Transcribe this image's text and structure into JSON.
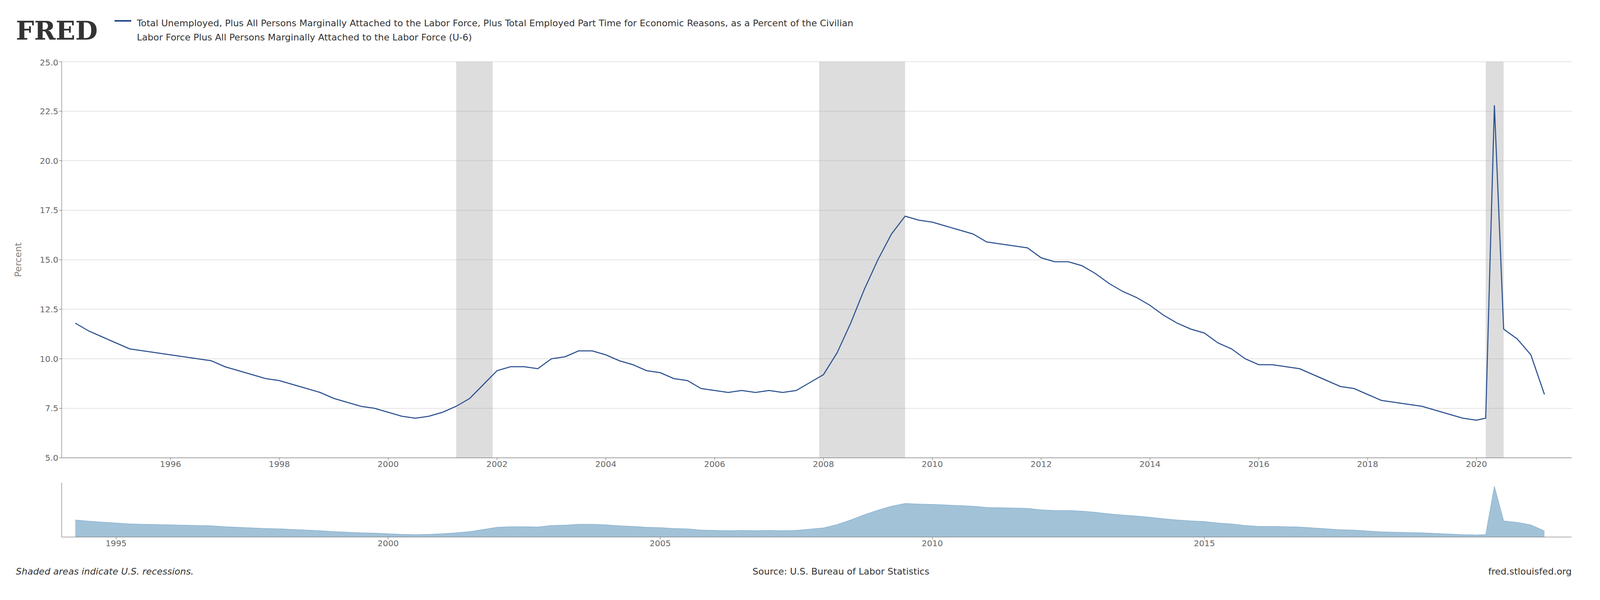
{
  "chart_data": [
    {
      "type": "line",
      "title": "Total Unemployed, Plus All Persons Marginally Attached to the Labor Force, Plus Total Employed Part Time for Economic Reasons, as a Percent of the Civilian",
      "subtitle": "Labor Force Plus All Persons Marginally Attached to the Labor Force (U-6)",
      "ylabel": "Percent",
      "annotations": [
        "FRED",
        "Shaded areas indicate U.S. recessions.",
        "Source: U.S. Bureau of Labor Statistics",
        "fred.stlouisfed.org"
      ],
      "color": "#2a4f8f",
      "xlim": [
        1994.0,
        2021.75
      ],
      "xticks": [
        1996,
        1998,
        2000,
        2002,
        2004,
        2006,
        2008,
        2010,
        2012,
        2014,
        2016,
        2018,
        2020
      ],
      "ylim": [
        5.0,
        25.0
      ],
      "yticks": [
        {
          "value": 5,
          "label": "5.0"
        },
        7.5,
        {
          "value": 10,
          "label": "10.0"
        },
        12.5,
        {
          "value": 15,
          "label": "15.0"
        },
        17.5,
        {
          "value": 20,
          "label": "20.0"
        },
        22.5,
        {
          "value": 25,
          "label": "25.0"
        }
      ],
      "grid": true,
      "recessions": [
        [
          2001.25,
          2001.92
        ],
        [
          2007.92,
          2009.5
        ],
        [
          2020.17,
          2020.5
        ]
      ],
      "x": [
        1994.25,
        1994.5,
        1994.75,
        1995.0,
        1995.25,
        1995.5,
        1995.75,
        1996.0,
        1996.25,
        1996.5,
        1996.75,
        1997.0,
        1997.25,
        1997.5,
        1997.75,
        1998.0,
        1998.25,
        1998.5,
        1998.75,
        1999.0,
        1999.25,
        1999.5,
        1999.75,
        2000.0,
        2000.25,
        2000.5,
        2000.75,
        2001.0,
        2001.25,
        2001.5,
        2001.75,
        2002.0,
        2002.25,
        2002.5,
        2002.75,
        2003.0,
        2003.25,
        2003.5,
        2003.75,
        2004.0,
        2004.25,
        2004.5,
        2004.75,
        2005.0,
        2005.25,
        2005.5,
        2005.75,
        2006.0,
        2006.25,
        2006.5,
        2006.75,
        2007.0,
        2007.25,
        2007.5,
        2007.75,
        2008.0,
        2008.25,
        2008.5,
        2008.75,
        2009.0,
        2009.25,
        2009.5,
        2009.75,
        2010.0,
        2010.25,
        2010.5,
        2010.75,
        2011.0,
        2011.25,
        2011.5,
        2011.75,
        2012.0,
        2012.25,
        2012.5,
        2012.75,
        2013.0,
        2013.25,
        2013.5,
        2013.75,
        2014.0,
        2014.25,
        2014.5,
        2014.75,
        2015.0,
        2015.25,
        2015.5,
        2015.75,
        2016.0,
        2016.25,
        2016.5,
        2016.75,
        2017.0,
        2017.25,
        2017.5,
        2017.75,
        2018.0,
        2018.25,
        2018.5,
        2018.75,
        2019.0,
        2019.25,
        2019.5,
        2019.75,
        2020.0,
        2020.17,
        2020.33,
        2020.5,
        2020.75,
        2021.0,
        2021.25
      ],
      "values": [
        11.8,
        11.4,
        11.1,
        10.8,
        10.5,
        10.4,
        10.3,
        10.2,
        10.1,
        10.0,
        9.9,
        9.6,
        9.4,
        9.2,
        9.0,
        8.9,
        8.7,
        8.5,
        8.3,
        8.0,
        7.8,
        7.6,
        7.5,
        7.3,
        7.1,
        7.0,
        7.1,
        7.3,
        7.6,
        8.0,
        8.7,
        9.4,
        9.6,
        9.6,
        9.5,
        10.0,
        10.1,
        10.4,
        10.4,
        10.2,
        9.9,
        9.7,
        9.4,
        9.3,
        9.0,
        8.9,
        8.5,
        8.4,
        8.3,
        8.4,
        8.3,
        8.4,
        8.3,
        8.4,
        8.8,
        9.2,
        10.3,
        11.8,
        13.5,
        15.0,
        16.3,
        17.2,
        17.0,
        16.9,
        16.7,
        16.5,
        16.3,
        15.9,
        15.8,
        15.7,
        15.6,
        15.1,
        14.9,
        14.9,
        14.7,
        14.3,
        13.8,
        13.4,
        13.1,
        12.7,
        12.2,
        11.8,
        11.5,
        11.3,
        10.8,
        10.5,
        10.0,
        9.7,
        9.7,
        9.6,
        9.5,
        9.2,
        8.9,
        8.6,
        8.5,
        8.2,
        7.9,
        7.8,
        7.7,
        7.6,
        7.4,
        7.2,
        7.0,
        6.9,
        7.0,
        22.8,
        11.5,
        11.0,
        10.2,
        8.2
      ]
    },
    {
      "type": "area",
      "color": "#7aa8c8",
      "xlim": [
        1994.0,
        2021.75
      ],
      "xticks": [
        1995,
        2000,
        2005,
        2010,
        2015
      ],
      "ylim": [
        6.21,
        23.94
      ],
      "tick_labels": "x",
      "grid": false,
      "x": [
        1994.25,
        1994.5,
        1994.75,
        1995.0,
        1995.25,
        1995.5,
        1995.75,
        1996.0,
        1996.25,
        1996.5,
        1996.75,
        1997.0,
        1997.25,
        1997.5,
        1997.75,
        1998.0,
        1998.25,
        1998.5,
        1998.75,
        1999.0,
        1999.25,
        1999.5,
        1999.75,
        2000.0,
        2000.25,
        2000.5,
        2000.75,
        2001.0,
        2001.25,
        2001.5,
        2001.75,
        2002.0,
        2002.25,
        2002.5,
        2002.75,
        2003.0,
        2003.25,
        2003.5,
        2003.75,
        2004.0,
        2004.25,
        2004.5,
        2004.75,
        2005.0,
        2005.25,
        2005.5,
        2005.75,
        2006.0,
        2006.25,
        2006.5,
        2006.75,
        2007.0,
        2007.25,
        2007.5,
        2007.75,
        2008.0,
        2008.25,
        2008.5,
        2008.75,
        2009.0,
        2009.25,
        2009.5,
        2009.75,
        2010.0,
        2010.25,
        2010.5,
        2010.75,
        2011.0,
        2011.25,
        2011.5,
        2011.75,
        2012.0,
        2012.25,
        2012.5,
        2012.75,
        2013.0,
        2013.25,
        2013.5,
        2013.75,
        2014.0,
        2014.25,
        2014.5,
        2014.75,
        2015.0,
        2015.25,
        2015.5,
        2015.75,
        2016.0,
        2016.25,
        2016.5,
        2016.75,
        2017.0,
        2017.25,
        2017.5,
        2017.75,
        2018.0,
        2018.25,
        2018.5,
        2018.75,
        2019.0,
        2019.25,
        2019.5,
        2019.75,
        2020.0,
        2020.17,
        2020.33,
        2020.5,
        2020.75,
        2021.0,
        2021.25
      ],
      "values": [
        11.8,
        11.4,
        11.1,
        10.8,
        10.5,
        10.4,
        10.3,
        10.2,
        10.1,
        10.0,
        9.9,
        9.6,
        9.4,
        9.2,
        9.0,
        8.9,
        8.7,
        8.5,
        8.3,
        8.0,
        7.8,
        7.6,
        7.5,
        7.3,
        7.1,
        7.0,
        7.1,
        7.3,
        7.6,
        8.0,
        8.7,
        9.4,
        9.6,
        9.6,
        9.5,
        10.0,
        10.1,
        10.4,
        10.4,
        10.2,
        9.9,
        9.7,
        9.4,
        9.3,
        9.0,
        8.9,
        8.5,
        8.4,
        8.3,
        8.4,
        8.3,
        8.4,
        8.3,
        8.4,
        8.8,
        9.2,
        10.3,
        11.8,
        13.5,
        15.0,
        16.3,
        17.2,
        17.0,
        16.9,
        16.7,
        16.5,
        16.3,
        15.9,
        15.8,
        15.7,
        15.6,
        15.1,
        14.9,
        14.9,
        14.7,
        14.3,
        13.8,
        13.4,
        13.1,
        12.7,
        12.2,
        11.8,
        11.5,
        11.3,
        10.8,
        10.5,
        10.0,
        9.7,
        9.7,
        9.6,
        9.5,
        9.2,
        8.9,
        8.6,
        8.5,
        8.2,
        7.9,
        7.8,
        7.7,
        7.6,
        7.4,
        7.2,
        7.0,
        6.9,
        7.0,
        22.8,
        11.5,
        11.0,
        10.2,
        8.2
      ]
    }
  ]
}
